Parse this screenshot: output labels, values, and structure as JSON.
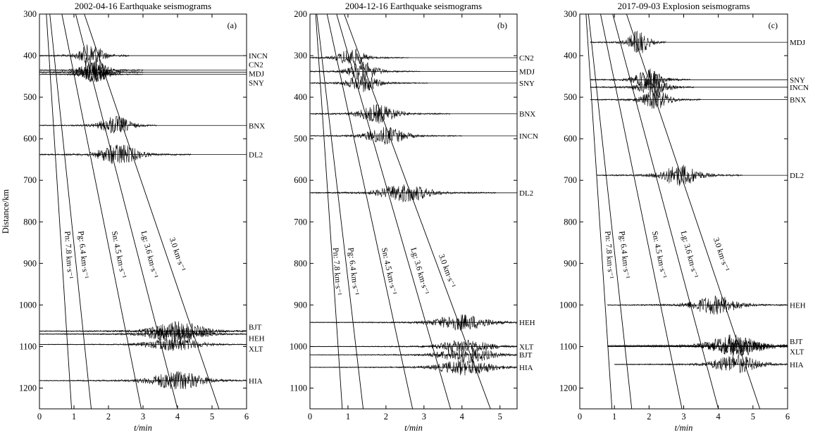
{
  "chart_data": [
    {
      "type": "line",
      "panel_label": "(a)",
      "title": "2002-04-16 Earthquake seismograms",
      "xlabel": "t/min",
      "ylabel": "Distance/km",
      "xlim": [
        0,
        6
      ],
      "ylim": [
        300,
        1250
      ],
      "x_ticks": [
        0,
        1,
        2,
        3,
        4,
        5,
        6
      ],
      "y_ticks": [
        300,
        400,
        500,
        600,
        700,
        800,
        900,
        1000,
        1100,
        1200
      ],
      "stations": [
        {
          "name": "INCN",
          "distance": 400,
          "label_dy": 0,
          "t_start": 0.0,
          "t_end": 2.6,
          "t_peak": 1.5,
          "amp": 18
        },
        {
          "name": "CN2",
          "distance": 435,
          "label_dy": -8,
          "t_start": 0.0,
          "t_end": 3.0,
          "t_peak": 1.6,
          "amp": 14
        },
        {
          "name": "MDJ",
          "distance": 440,
          "label_dy": 2,
          "t_start": 0.0,
          "t_end": 3.0,
          "t_peak": 1.6,
          "amp": 16
        },
        {
          "name": "SNY",
          "distance": 445,
          "label_dy": 12,
          "t_start": 0.0,
          "t_end": 3.0,
          "t_peak": 1.6,
          "amp": 12
        },
        {
          "name": "BNX",
          "distance": 568,
          "label_dy": 0,
          "t_start": 0.0,
          "t_end": 3.4,
          "t_peak": 2.2,
          "amp": 14
        },
        {
          "name": "DL2",
          "distance": 638,
          "label_dy": 0,
          "t_start": 0.0,
          "t_end": 4.4,
          "t_peak": 2.3,
          "amp": 16
        },
        {
          "name": "BJT",
          "distance": 1063,
          "label_dy": -6,
          "t_start": 0.0,
          "t_end": 6.0,
          "t_peak": 4.0,
          "amp": 14
        },
        {
          "name": "HEH",
          "distance": 1070,
          "label_dy": 6,
          "t_start": 0.0,
          "t_end": 6.0,
          "t_peak": 3.9,
          "amp": 12
        },
        {
          "name": "XLT",
          "distance": 1095,
          "label_dy": 6,
          "t_start": 0.0,
          "t_end": 6.0,
          "t_peak": 3.9,
          "amp": 10
        },
        {
          "name": "HIA",
          "distance": 1182,
          "label_dy": 0,
          "t_start": 0.0,
          "t_end": 6.0,
          "t_peak": 4.0,
          "amp": 14
        }
      ],
      "velocity_lines": [
        {
          "label": "Pn: 7.8 km·s⁻¹",
          "x_top": 0.2,
          "x_bottom": 0.93,
          "label_t": 0.78,
          "label_d": 880
        },
        {
          "label": "Pg: 6.4 km·s⁻¹",
          "x_top": 0.3,
          "x_bottom": 1.5,
          "label_t": 1.2,
          "label_d": 880
        },
        {
          "label": "Sn: 4.5 km·s⁻¹",
          "x_top": 0.65,
          "x_bottom": 2.95,
          "label_t": 2.23,
          "label_d": 880
        },
        {
          "label": "Lg: 3.6 km·s⁻¹",
          "x_top": 1.05,
          "x_bottom": 4.0,
          "label_t": 3.12,
          "label_d": 880
        },
        {
          "label": "3.0 km·s⁻¹",
          "x_top": 1.3,
          "x_bottom": 5.2,
          "label_t": 3.93,
          "label_d": 880
        }
      ]
    },
    {
      "type": "line",
      "panel_label": "(b)",
      "title": "2004-12-16 Earthquake seismograms",
      "xlabel": "t/min",
      "ylabel": "",
      "xlim": [
        0,
        5.45
      ],
      "ylim": [
        200,
        1150
      ],
      "x_ticks": [
        0,
        1,
        2,
        3,
        4,
        5
      ],
      "y_ticks": [
        200,
        300,
        400,
        500,
        600,
        700,
        800,
        900,
        1000,
        1100
      ],
      "stations": [
        {
          "name": "CN2",
          "distance": 305,
          "label_dy": 0,
          "t_start": 0.0,
          "t_end": 2.6,
          "t_peak": 1.1,
          "amp": 14
        },
        {
          "name": "MDJ",
          "distance": 338,
          "label_dy": 0,
          "t_start": 0.0,
          "t_end": 2.9,
          "t_peak": 1.4,
          "amp": 14
        },
        {
          "name": "SNY",
          "distance": 366,
          "label_dy": 0,
          "t_start": 0.0,
          "t_end": 3.1,
          "t_peak": 1.4,
          "amp": 13
        },
        {
          "name": "BNX",
          "distance": 440,
          "label_dy": 0,
          "t_start": 0.0,
          "t_end": 3.7,
          "t_peak": 1.8,
          "amp": 14
        },
        {
          "name": "INCN",
          "distance": 493,
          "label_dy": 0,
          "t_start": 0.0,
          "t_end": 4.0,
          "t_peak": 2.0,
          "amp": 13
        },
        {
          "name": "DL2",
          "distance": 630,
          "label_dy": 0,
          "t_start": 0.0,
          "t_end": 4.9,
          "t_peak": 2.5,
          "amp": 14
        },
        {
          "name": "HEH",
          "distance": 942,
          "label_dy": 0,
          "t_start": 0.0,
          "t_end": 5.45,
          "t_peak": 4.0,
          "amp": 12
        },
        {
          "name": "XLT",
          "distance": 1000,
          "label_dy": 0,
          "t_start": 0.0,
          "t_end": 5.45,
          "t_peak": 4.1,
          "amp": 10
        },
        {
          "name": "BJT",
          "distance": 1020,
          "label_dy": 0,
          "t_start": 0.0,
          "t_end": 5.45,
          "t_peak": 4.1,
          "amp": 12
        },
        {
          "name": "HIA",
          "distance": 1050,
          "label_dy": 0,
          "t_start": 0.0,
          "t_end": 5.45,
          "t_peak": 4.1,
          "amp": 12
        }
      ],
      "velocity_lines": [
        {
          "label": "Pn: 7.8 km·s⁻¹",
          "x_top": 0.15,
          "x_bottom": 0.85,
          "label_t": 0.65,
          "label_d": 820
        },
        {
          "label": "Pg: 6.4 km·s⁻¹",
          "x_top": 0.18,
          "x_bottom": 1.4,
          "label_t": 1.08,
          "label_d": 820
        },
        {
          "label": "Sn: 4.5 km·s⁻¹",
          "x_top": 0.45,
          "x_bottom": 2.7,
          "label_t": 2.02,
          "label_d": 820
        },
        {
          "label": "Lg: 3.6 km·s⁻¹",
          "x_top": 0.7,
          "x_bottom": 3.7,
          "label_t": 2.83,
          "label_d": 820
        },
        {
          "label": "3.0 km·s⁻¹",
          "x_top": 0.9,
          "x_bottom": 4.75,
          "label_t": 3.55,
          "label_d": 820
        }
      ]
    },
    {
      "type": "line",
      "panel_label": "(c)",
      "title": "2017-09-03 Explosion seismograms",
      "xlabel": "t/min",
      "ylabel": "",
      "xlim": [
        0,
        6
      ],
      "ylim": [
        300,
        1250
      ],
      "x_ticks": [
        0,
        1,
        2,
        3,
        4,
        5,
        6
      ],
      "y_ticks": [
        300,
        400,
        500,
        600,
        700,
        800,
        900,
        1000,
        1100,
        1200
      ],
      "stations": [
        {
          "name": "MDJ",
          "distance": 368,
          "label_dy": 0,
          "t_start": 0.3,
          "t_end": 2.5,
          "t_peak": 1.7,
          "amp": 18
        },
        {
          "name": "SNY",
          "distance": 458,
          "label_dy": 0,
          "t_start": 0.3,
          "t_end": 3.2,
          "t_peak": 2.0,
          "amp": 16
        },
        {
          "name": "INCN",
          "distance": 476,
          "label_dy": 0,
          "t_start": 0.3,
          "t_end": 3.3,
          "t_peak": 2.1,
          "amp": 16
        },
        {
          "name": "BNX",
          "distance": 506,
          "label_dy": 0,
          "t_start": 0.3,
          "t_end": 3.5,
          "t_peak": 2.2,
          "amp": 14
        },
        {
          "name": "DL2",
          "distance": 688,
          "label_dy": 0,
          "t_start": 0.5,
          "t_end": 4.7,
          "t_peak": 2.9,
          "amp": 16
        },
        {
          "name": "HEH",
          "distance": 1000,
          "label_dy": 0,
          "t_start": 0.8,
          "t_end": 6.0,
          "t_peak": 3.9,
          "amp": 14
        },
        {
          "name": "BJT",
          "distance": 1098,
          "label_dy": -6,
          "t_start": 0.8,
          "t_end": 6.0,
          "t_peak": 4.4,
          "amp": 16
        },
        {
          "name": "XLT",
          "distance": 1100,
          "label_dy": 7,
          "t_start": 0.8,
          "t_end": 6.0,
          "t_peak": 4.6,
          "amp": 14
        },
        {
          "name": "HIA",
          "distance": 1143,
          "label_dy": 0,
          "t_start": 1.0,
          "t_end": 6.0,
          "t_peak": 4.5,
          "amp": 14
        }
      ],
      "velocity_lines": [
        {
          "label": "Pn: 7.8 km·s⁻¹",
          "x_top": 0.18,
          "x_bottom": 0.93,
          "label_t": 0.78,
          "label_d": 880
        },
        {
          "label": "Pg: 6.4 km·s⁻¹",
          "x_top": 0.25,
          "x_bottom": 1.5,
          "label_t": 1.22,
          "label_d": 880
        },
        {
          "label": "Sn: 4.5 km·s⁻¹",
          "x_top": 0.6,
          "x_bottom": 2.95,
          "label_t": 2.23,
          "label_d": 880
        },
        {
          "label": "Lg: 3.6 km·s⁻¹",
          "x_top": 0.95,
          "x_bottom": 4.0,
          "label_t": 3.1,
          "label_d": 880
        },
        {
          "label": "3.0 km·s⁻¹",
          "x_top": 1.35,
          "x_bottom": 5.2,
          "label_t": 4.02,
          "label_d": 880
        }
      ]
    }
  ]
}
